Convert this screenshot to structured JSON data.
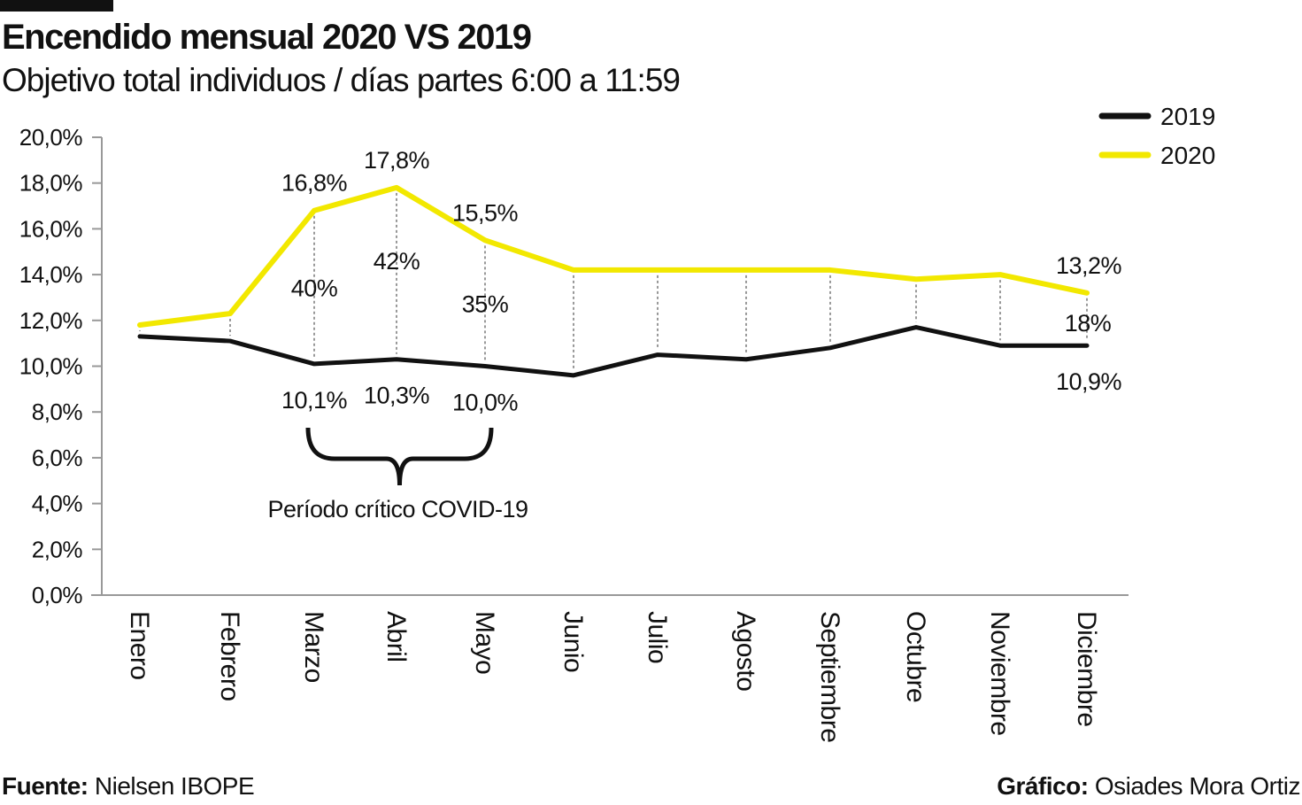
{
  "title": "Encendido mensual 2020 VS 2019",
  "subtitle": "Objetivo total individuos / días partes 6:00 a 11:59",
  "footer": {
    "source_label": "Fuente:",
    "source_value": "Nielsen IBOPE",
    "credit_label": "Gráfico:",
    "credit_value": "Osiades Mora Ortiz"
  },
  "chart_data": {
    "type": "line",
    "title": "Encendido mensual 2020 VS 2019",
    "categories": [
      "Enero",
      "Febrero",
      "Marzo",
      "Abril",
      "Mayo",
      "Junio",
      "Julio",
      "Agosto",
      "Septiembre",
      "Octubre",
      "Noviembre",
      "Diciembre"
    ],
    "ylim": [
      0,
      20
    ],
    "yticks": [
      "0,0%",
      "2,0%",
      "4,0%",
      "6,0%",
      "8,0%",
      "10,0%",
      "12,0%",
      "14,0%",
      "16,0%",
      "18,0%",
      "20,0%"
    ],
    "grid": false,
    "legend_placement": "top-right",
    "series": [
      {
        "name": "2019",
        "color": "#111111",
        "values": [
          11.3,
          11.1,
          10.1,
          10.3,
          10.0,
          9.6,
          10.5,
          10.3,
          10.8,
          11.7,
          10.9,
          10.9
        ]
      },
      {
        "name": "2020",
        "color": "#f2e800",
        "values": [
          11.8,
          12.3,
          16.8,
          17.8,
          15.5,
          14.2,
          14.2,
          14.2,
          14.2,
          13.8,
          14.0,
          13.2
        ]
      }
    ],
    "data_labels": [
      {
        "month": "Marzo",
        "text": "16,8%",
        "series": "2020"
      },
      {
        "month": "Abril",
        "text": "17,8%",
        "series": "2020"
      },
      {
        "month": "Mayo",
        "text": "15,5%",
        "series": "2020"
      },
      {
        "month": "Diciembre",
        "text": "13,2%",
        "series": "2020"
      },
      {
        "month": "Marzo",
        "text": "10,1%",
        "series": "2019"
      },
      {
        "month": "Abril",
        "text": "10,3%",
        "series": "2019"
      },
      {
        "month": "Mayo",
        "text": "10,0%",
        "series": "2019"
      },
      {
        "month": "Diciembre",
        "text": "10,9%",
        "series": "2019"
      }
    ],
    "difference_labels": [
      {
        "month": "Marzo",
        "text": "40%"
      },
      {
        "month": "Abril",
        "text": "42%"
      },
      {
        "month": "Mayo",
        "text": "35%"
      },
      {
        "month": "Diciembre",
        "text": "18%"
      }
    ],
    "annotation": {
      "text": "Período crítico COVID-19",
      "from": "Marzo",
      "to": "Mayo"
    }
  }
}
